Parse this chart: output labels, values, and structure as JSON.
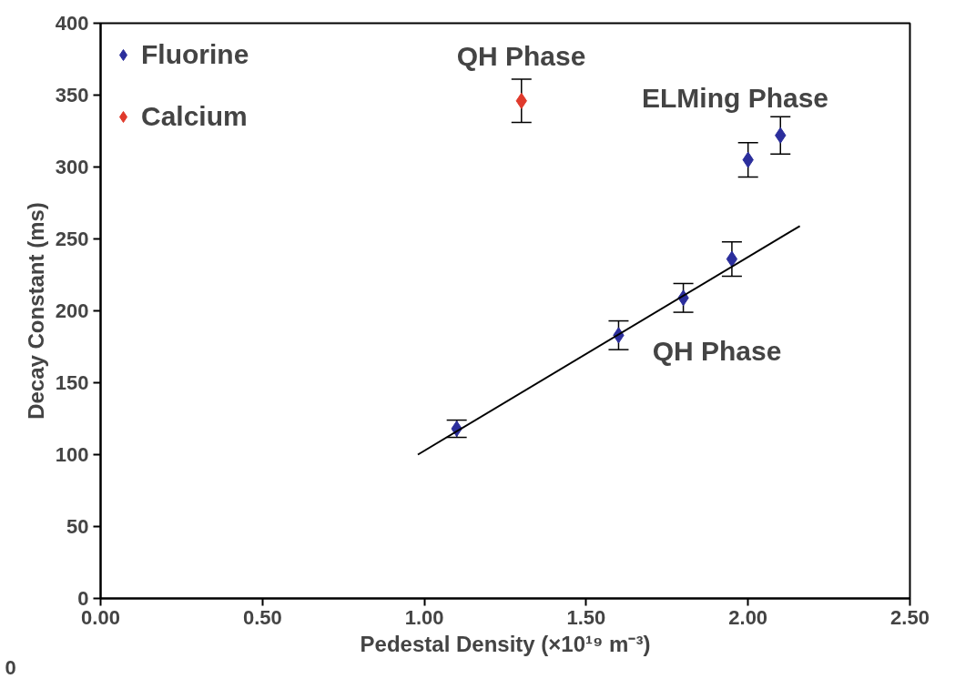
{
  "chart_data": {
    "type": "scatter",
    "xlabel": "Pedestal Density (×10¹⁹ m⁻³)",
    "ylabel": "Decay Constant (ms)",
    "xlim": [
      0,
      2.5
    ],
    "ylim": [
      0,
      400
    ],
    "xticks": [
      {
        "value": 0,
        "label": "0.00"
      },
      {
        "value": 0.5,
        "label": "0.50"
      },
      {
        "value": 1,
        "label": "1.00"
      },
      {
        "value": 1.5,
        "label": "1.50"
      },
      {
        "value": 2,
        "label": "2.00"
      },
      {
        "value": 2.5,
        "label": "2.50"
      }
    ],
    "yticks": [
      0,
      50,
      100,
      150,
      200,
      250,
      300,
      350,
      400
    ],
    "grid": false,
    "legend": "top left",
    "marker": "diamond",
    "series": [
      {
        "name": "Fluorine",
        "color": "#2b2e9c",
        "x": [
          1.1,
          1.6,
          1.8,
          1.95,
          2.0,
          2.1
        ],
        "values": [
          118,
          183,
          209,
          236,
          305,
          322
        ],
        "errors": [
          6,
          10,
          10,
          12,
          12,
          13
        ]
      },
      {
        "name": "Calcium",
        "color": "#e03a2c",
        "x": [
          1.3
        ],
        "values": [
          346
        ],
        "errors": [
          15
        ]
      },
      {
        "type": "line",
        "color": "#000000",
        "x": [
          0.98,
          2.16
        ],
        "values": [
          100,
          259
        ],
        "marker": "none"
      }
    ],
    "annotations": [
      "QH Phase",
      "ELMing Phase",
      "QH Phase",
      "0"
    ]
  }
}
